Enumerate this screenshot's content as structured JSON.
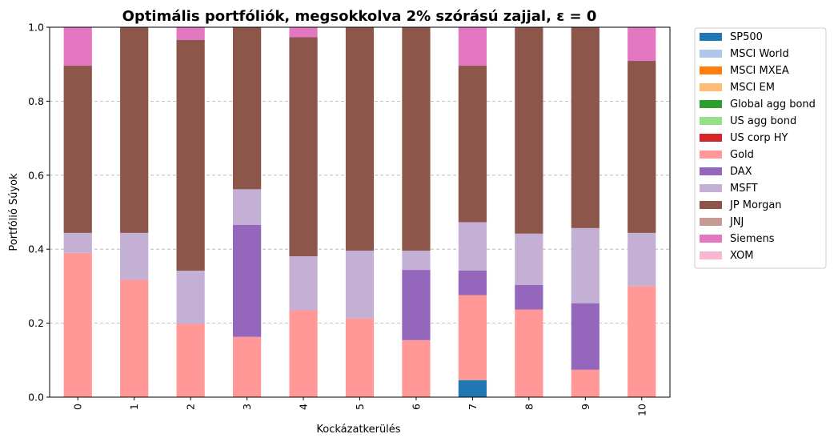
{
  "chart_data": {
    "type": "bar",
    "stacked": true,
    "title": "Optimális portfóliók, megsokkolva 2% szórású zajjal, ε = 0",
    "xlabel": "Kockázatkerülés",
    "ylabel": "Portfólió Súyok",
    "ylim": [
      0,
      1.0
    ],
    "yticks": [
      "0.0",
      "0.2",
      "0.4",
      "0.6",
      "0.8",
      "1.0"
    ],
    "grid": "horizontal dashed",
    "legend_position": "outside right",
    "categories": [
      "0",
      "1",
      "2",
      "3",
      "4",
      "5",
      "6",
      "7",
      "8",
      "9",
      "10"
    ],
    "series": [
      {
        "name": "SP500",
        "color": "#1f77b4",
        "values": [
          0,
          0,
          0,
          0,
          0,
          0,
          0,
          0.046,
          0,
          0,
          0
        ]
      },
      {
        "name": "MSCI World",
        "color": "#aec7e8",
        "values": [
          0,
          0,
          0,
          0,
          0,
          0,
          0,
          0,
          0,
          0,
          0
        ]
      },
      {
        "name": "MSCI MXEA",
        "color": "#ff7f0e",
        "values": [
          0,
          0,
          0,
          0,
          0,
          0,
          0,
          0,
          0,
          0,
          0
        ]
      },
      {
        "name": "MSCI EM",
        "color": "#ffbb78",
        "values": [
          0,
          0,
          0,
          0,
          0,
          0,
          0,
          0,
          0,
          0,
          0
        ]
      },
      {
        "name": "Global agg bond",
        "color": "#2ca02c",
        "values": [
          0,
          0,
          0,
          0,
          0,
          0,
          0,
          0,
          0,
          0,
          0
        ]
      },
      {
        "name": "US agg bond",
        "color": "#98df8a",
        "values": [
          0,
          0,
          0,
          0,
          0,
          0,
          0,
          0,
          0,
          0,
          0
        ]
      },
      {
        "name": "US corp HY",
        "color": "#d62728",
        "values": [
          0,
          0,
          0,
          0,
          0,
          0,
          0,
          0,
          0,
          0,
          0
        ]
      },
      {
        "name": "Gold",
        "color": "#ff9896",
        "values": [
          0.39,
          0.317,
          0.198,
          0.163,
          0.235,
          0.213,
          0.154,
          0.23,
          0.237,
          0.074,
          0.3
        ]
      },
      {
        "name": "DAX",
        "color": "#9467bd",
        "values": [
          0,
          0,
          0,
          0.303,
          0,
          0,
          0.19,
          0.066,
          0.066,
          0.18,
          0
        ]
      },
      {
        "name": "MSFT",
        "color": "#c5b0d5",
        "values": [
          0.054,
          0.127,
          0.144,
          0.096,
          0.146,
          0.183,
          0.052,
          0.131,
          0.139,
          0.203,
          0.144
        ]
      },
      {
        "name": "JP Morgan",
        "color": "#8c564b",
        "values": [
          0.452,
          0.556,
          0.624,
          0.438,
          0.592,
          0.604,
          0.604,
          0.423,
          0.558,
          0.543,
          0.465
        ]
      },
      {
        "name": "JNJ",
        "color": "#c49c94",
        "values": [
          0,
          0,
          0,
          0,
          0,
          0,
          0,
          0,
          0,
          0,
          0
        ]
      },
      {
        "name": "Siemens",
        "color": "#e377c2",
        "values": [
          0.104,
          0,
          0.034,
          0,
          0.027,
          0,
          0,
          0.104,
          0,
          0,
          0.091
        ]
      },
      {
        "name": "XOM",
        "color": "#f7b6d2",
        "values": [
          0,
          0,
          0,
          0,
          0,
          0,
          0,
          0,
          0,
          0,
          0
        ]
      }
    ]
  }
}
